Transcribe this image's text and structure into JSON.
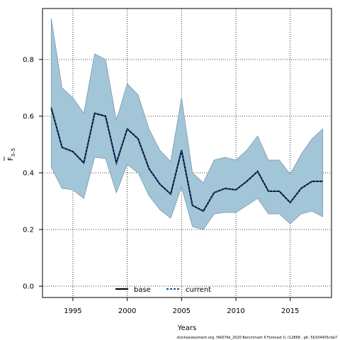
{
  "chart_data": {
    "type": "line",
    "xlabel": "Years",
    "ylabel_main": "F",
    "ylabel_sub": "3–5",
    "xlim": [
      1992.2,
      2018.8
    ],
    "ylim": [
      -0.04,
      0.98
    ],
    "xticks": [
      1995,
      2000,
      2005,
      2010,
      2015
    ],
    "yticks": [
      0.0,
      0.2,
      0.4,
      0.6,
      0.8
    ],
    "grid": true,
    "legend_position": "bottom-center",
    "legend": [
      "base",
      "current"
    ],
    "colors": {
      "band_fill": "#a3c5d8",
      "band_stroke": "#7a98aa",
      "base_line": "#000000",
      "current_line": "#1a4f8c",
      "grid": "#000000"
    },
    "x": [
      1993,
      1994,
      1995,
      1996,
      1997,
      1998,
      1999,
      2000,
      2001,
      2002,
      2003,
      2004,
      2005,
      2006,
      2007,
      2008,
      2009,
      2010,
      2011,
      2012,
      2013,
      2014,
      2015,
      2016,
      2017,
      2018
    ],
    "series": [
      {
        "name": "base",
        "values": [
          0.63,
          0.49,
          0.475,
          0.435,
          0.61,
          0.6,
          0.435,
          0.555,
          0.52,
          0.415,
          0.36,
          0.325,
          0.48,
          0.285,
          0.265,
          0.33,
          0.345,
          0.34,
          0.37,
          0.405,
          0.335,
          0.335,
          0.295,
          0.345,
          0.37,
          0.37
        ],
        "lower": [
          0.42,
          0.345,
          0.34,
          0.31,
          0.455,
          0.45,
          0.33,
          0.43,
          0.4,
          0.32,
          0.27,
          0.24,
          0.35,
          0.21,
          0.2,
          0.255,
          0.26,
          0.26,
          0.285,
          0.31,
          0.255,
          0.255,
          0.22,
          0.255,
          0.265,
          0.245
        ],
        "upper": [
          0.945,
          0.7,
          0.665,
          0.61,
          0.82,
          0.8,
          0.585,
          0.715,
          0.675,
          0.555,
          0.48,
          0.44,
          0.665,
          0.4,
          0.365,
          0.445,
          0.455,
          0.445,
          0.48,
          0.53,
          0.445,
          0.445,
          0.395,
          0.465,
          0.52,
          0.555
        ]
      },
      {
        "name": "current",
        "values": [
          0.63,
          0.49,
          0.475,
          0.435,
          0.61,
          0.6,
          0.435,
          0.555,
          0.52,
          0.415,
          0.36,
          0.325,
          0.48,
          0.285,
          0.265,
          0.33,
          0.345,
          0.34,
          0.37,
          0.405,
          0.335,
          0.335,
          0.295,
          0.345,
          0.37,
          0.37
        ]
      }
    ]
  },
  "footer": {
    "credit": "stockassessment.org, HAD7bk_2020 Benchmark II Forecast II, r12868 , git: 5b334405cda7"
  }
}
